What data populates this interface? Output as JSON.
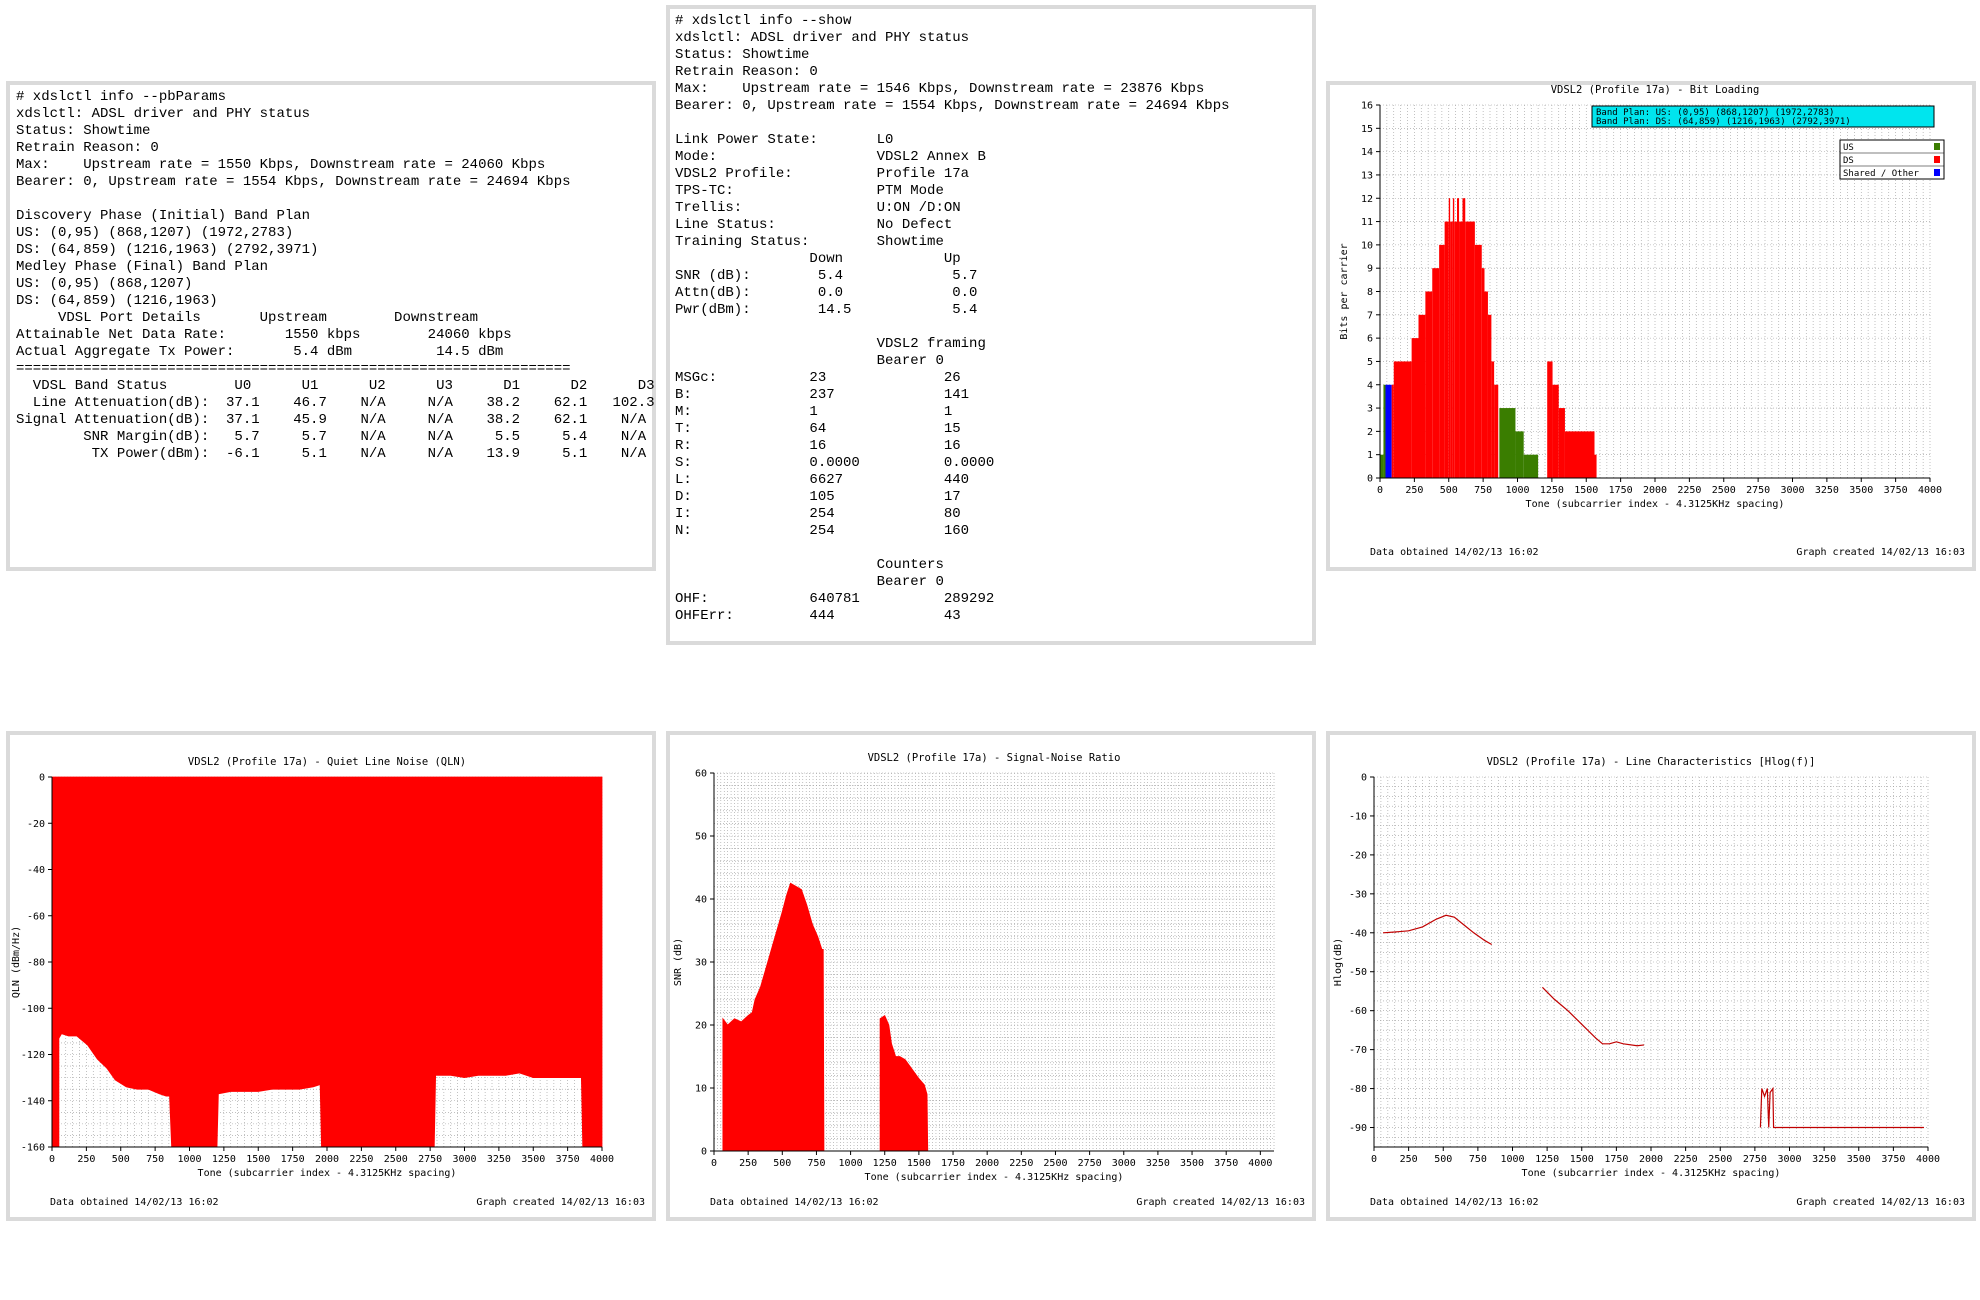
{
  "pbparams": {
    "lines": [
      "# xdslctl info --pbParams",
      "xdslctl: ADSL driver and PHY status",
      "Status: Showtime",
      "Retrain Reason: 0",
      "Max:    Upstream rate = 1550 Kbps, Downstream rate = 24060 Kbps",
      "Bearer: 0, Upstream rate = 1554 Kbps, Downstream rate = 24694 Kbps",
      "",
      "Discovery Phase (Initial) Band Plan",
      "US: (0,95) (868,1207) (1972,2783)",
      "DS: (64,859) (1216,1963) (2792,3971)",
      "Medley Phase (Final) Band Plan",
      "US: (0,95) (868,1207)",
      "DS: (64,859) (1216,1963)",
      "     VDSL Port Details       Upstream        Downstream",
      "Attainable Net Data Rate:       1550 kbps        24060 kbps",
      "Actual Aggregate Tx Power:       5.4 dBm          14.5 dBm",
      "==================================================================",
      "  VDSL Band Status        U0      U1      U2      U3      D1      D2      D3",
      "  Line Attenuation(dB):  37.1    46.7    N/A     N/A    38.2    62.1   102.3",
      "Signal Attenuation(dB):  37.1    45.9    N/A     N/A    38.2    62.1    N/A",
      "        SNR Margin(dB):   5.7     5.7    N/A     N/A     5.5     5.4    N/A",
      "         TX Power(dBm):  -6.1     5.1    N/A     N/A    13.9     5.1    N/A"
    ]
  },
  "show": {
    "lines": [
      "# xdslctl info --show",
      "xdslctl: ADSL driver and PHY status",
      "Status: Showtime",
      "Retrain Reason: 0",
      "Max:    Upstream rate = 1546 Kbps, Downstream rate = 23876 Kbps",
      "Bearer: 0, Upstream rate = 1554 Kbps, Downstream rate = 24694 Kbps",
      "",
      "Link Power State:       L0",
      "Mode:                   VDSL2 Annex B",
      "VDSL2 Profile:          Profile 17a",
      "TPS-TC:                 PTM Mode",
      "Trellis:                U:ON /D:ON",
      "Line Status:            No Defect",
      "Training Status:        Showtime",
      "                Down            Up",
      "SNR (dB):        5.4             5.7",
      "Attn(dB):        0.0             0.0",
      "Pwr(dBm):        14.5            5.4",
      "",
      "                        VDSL2 framing",
      "                        Bearer 0",
      "MSGc:           23              26",
      "B:              237             141",
      "M:              1               1",
      "T:              64              15",
      "R:              16              16",
      "S:              0.0000          0.0000",
      "L:              6627            440",
      "D:              105             17",
      "I:              254             80",
      "N:              254             160",
      "",
      "                        Counters",
      "                        Bearer 0",
      "OHF:            640781          289292",
      "OHFErr:         444             43"
    ]
  },
  "chart_data": [
    {
      "id": "bits",
      "type": "bar",
      "title": "VDSL2 (Profile 17a) - Bit Loading",
      "xlabel": "Tone (subcarrier index - 4.3125KHz spacing)",
      "ylabel": "Bits per carrier",
      "xlim": [
        0,
        4000
      ],
      "ylim": [
        0,
        16
      ],
      "xticks": [
        0,
        250,
        500,
        750,
        1000,
        1250,
        1500,
        1750,
        2000,
        2250,
        2500,
        2750,
        3000,
        3250,
        3500,
        3750,
        4000
      ],
      "yticks": [
        0,
        1,
        2,
        3,
        4,
        5,
        6,
        7,
        8,
        9,
        10,
        11,
        12,
        13,
        14,
        15,
        16
      ],
      "grid": true,
      "band_plan": [
        "Band Plan: US: (0,95) (868,1207) (1972,2783)",
        "Band Plan: DS: (64,859) (1216,1963) (2792,3971)"
      ],
      "legend": [
        {
          "name": "US",
          "color": "#3a7d00"
        },
        {
          "name": "DS",
          "color": "#ff0000"
        },
        {
          "name": "Shared / Other",
          "color": "#0000ff"
        }
      ],
      "legend_position": "top-right",
      "series": [
        {
          "name": "US",
          "color": "#3a7d00",
          "steps": [
            [
              0,
              25,
              1
            ],
            [
              25,
              40,
              4
            ],
            [
              868,
              985,
              3
            ],
            [
              985,
              1045,
              2
            ],
            [
              1045,
              1150,
              1
            ]
          ]
        },
        {
          "name": "Shared / Other",
          "color": "#0000ff",
          "steps": [
            [
              40,
              85,
              4
            ]
          ]
        },
        {
          "name": "DS",
          "color": "#ff0000",
          "steps": [
            [
              85,
              100,
              4
            ],
            [
              100,
              230,
              5
            ],
            [
              230,
              280,
              6
            ],
            [
              280,
              330,
              7
            ],
            [
              330,
              380,
              8
            ],
            [
              380,
              430,
              9
            ],
            [
              430,
              470,
              10
            ],
            [
              470,
              500,
              11
            ],
            [
              500,
              510,
              12
            ],
            [
              510,
              530,
              11
            ],
            [
              530,
              540,
              12
            ],
            [
              540,
              560,
              11
            ],
            [
              560,
              575,
              12
            ],
            [
              575,
              600,
              11
            ],
            [
              600,
              620,
              12
            ],
            [
              620,
              690,
              11
            ],
            [
              690,
              740,
              10
            ],
            [
              740,
              760,
              9
            ],
            [
              760,
              785,
              8
            ],
            [
              785,
              810,
              7
            ],
            [
              810,
              830,
              5
            ],
            [
              830,
              860,
              4
            ],
            [
              1216,
              1255,
              5
            ],
            [
              1255,
              1300,
              4
            ],
            [
              1300,
              1345,
              3
            ],
            [
              1345,
              1400,
              2
            ],
            [
              1400,
              1560,
              2
            ],
            [
              1560,
              1575,
              1
            ]
          ]
        }
      ],
      "footer_left": "Data obtained 14/02/13 16:02",
      "footer_right": "Graph created 14/02/13 16:03"
    },
    {
      "id": "qln",
      "type": "area",
      "title": "VDSL2 (Profile 17a) - Quiet Line Noise (QLN)",
      "xlabel": "Tone (subcarrier index - 4.3125KHz spacing)",
      "ylabel": "QLN (dBm/Hz)",
      "xlim": [
        0,
        4000
      ],
      "ylim": [
        -160,
        0
      ],
      "xticks": [
        0,
        250,
        500,
        750,
        1000,
        1250,
        1500,
        1750,
        2000,
        2250,
        2500,
        2750,
        3000,
        3250,
        3500,
        3750,
        4000
      ],
      "yticks": [
        0,
        -20,
        -40,
        -60,
        -80,
        -100,
        -120,
        -140,
        -160
      ],
      "grid": true,
      "series": [
        {
          "name": "QLN",
          "color": "#ff0000",
          "points": [
            [
              0,
              -160
            ],
            [
              50,
              -160
            ],
            [
              50,
              -113
            ],
            [
              70,
              -111
            ],
            [
              120,
              -112
            ],
            [
              180,
              -112
            ],
            [
              260,
              -116
            ],
            [
              330,
              -122
            ],
            [
              400,
              -126
            ],
            [
              460,
              -131
            ],
            [
              540,
              -134
            ],
            [
              620,
              -135
            ],
            [
              700,
              -135
            ],
            [
              780,
              -137
            ],
            [
              830,
              -138
            ],
            [
              855,
              -138
            ],
            [
              870,
              -160
            ],
            [
              1200,
              -160
            ],
            [
              1210,
              -137
            ],
            [
              1300,
              -136
            ],
            [
              1400,
              -136
            ],
            [
              1500,
              -136
            ],
            [
              1600,
              -135
            ],
            [
              1700,
              -135
            ],
            [
              1800,
              -135
            ],
            [
              1900,
              -134
            ],
            [
              1950,
              -133
            ],
            [
              1960,
              -160
            ],
            [
              2780,
              -160
            ],
            [
              2790,
              -129
            ],
            [
              2900,
              -129
            ],
            [
              3000,
              -130
            ],
            [
              3100,
              -129
            ],
            [
              3200,
              -129
            ],
            [
              3300,
              -129
            ],
            [
              3400,
              -128
            ],
            [
              3500,
              -130
            ],
            [
              3600,
              -130
            ],
            [
              3700,
              -130
            ],
            [
              3800,
              -130
            ],
            [
              3850,
              -130
            ],
            [
              3860,
              -160
            ],
            [
              4000,
              -160
            ]
          ]
        }
      ],
      "footer_left": "Data obtained 14/02/13 16:02",
      "footer_right": "Graph created 14/02/13 16:03"
    },
    {
      "id": "snr",
      "type": "area",
      "title": "VDSL2 (Profile 17a) - Signal-Noise Ratio",
      "xlabel": "Tone (subcarrier index - 4.3125KHz spacing)",
      "ylabel": "SNR (dB)",
      "xlim": [
        0,
        4100
      ],
      "ylim": [
        0,
        60
      ],
      "xticks": [
        0,
        250,
        500,
        750,
        1000,
        1250,
        1500,
        1750,
        2000,
        2250,
        2500,
        2750,
        3000,
        3250,
        3500,
        3750,
        4000
      ],
      "yticks": [
        0,
        10,
        20,
        30,
        40,
        50,
        60
      ],
      "grid": true,
      "series": [
        {
          "name": "SNR",
          "color": "#ff0000",
          "points": [
            [
              65,
              0
            ],
            [
              65,
              21
            ],
            [
              100,
              20
            ],
            [
              150,
              21
            ],
            [
              200,
              20.5
            ],
            [
              250,
              21.5
            ],
            [
              280,
              22
            ],
            [
              300,
              24
            ],
            [
              340,
              26
            ],
            [
              380,
              29
            ],
            [
              420,
              32
            ],
            [
              460,
              35
            ],
            [
              500,
              38
            ],
            [
              530,
              40.5
            ],
            [
              560,
              42.5
            ],
            [
              600,
              42
            ],
            [
              640,
              41.5
            ],
            [
              680,
              39
            ],
            [
              720,
              36
            ],
            [
              760,
              34
            ],
            [
              790,
              32
            ],
            [
              800,
              32
            ],
            [
              805,
              0
            ],
            [
              1216,
              0
            ],
            [
              1216,
              21
            ],
            [
              1250,
              21.5
            ],
            [
              1280,
              20
            ],
            [
              1300,
              17
            ],
            [
              1330,
              15
            ],
            [
              1360,
              15
            ],
            [
              1400,
              14.5
            ],
            [
              1450,
              13
            ],
            [
              1500,
              11.5
            ],
            [
              1540,
              10.5
            ],
            [
              1560,
              9
            ],
            [
              1565,
              0
            ]
          ]
        }
      ],
      "footer_left": "Data obtained 14/02/13 16:02",
      "footer_right": "Graph created 14/02/13 16:03"
    },
    {
      "id": "hlog",
      "type": "line",
      "title": "VDSL2 (Profile 17a) - Line Characteristics [Hlog(f)]",
      "xlabel": "Tone (subcarrier index - 4.3125KHz spacing)",
      "ylabel": "Hlog(dB)",
      "xlim": [
        0,
        4000
      ],
      "ylim": [
        -95,
        0
      ],
      "xticks": [
        0,
        250,
        500,
        750,
        1000,
        1250,
        1500,
        1750,
        2000,
        2250,
        2500,
        2750,
        3000,
        3250,
        3500,
        3750,
        4000
      ],
      "yticks": [
        0,
        -10,
        -20,
        -30,
        -40,
        -50,
        -60,
        -70,
        -80,
        -90
      ],
      "grid": true,
      "series": [
        {
          "name": "Hlog1",
          "color": "#c00000",
          "points": [
            [
              65,
              -40
            ],
            [
              150,
              -39.8
            ],
            [
              250,
              -39.5
            ],
            [
              350,
              -38.5
            ],
            [
              450,
              -36.5
            ],
            [
              520,
              -35.5
            ],
            [
              580,
              -36
            ],
            [
              650,
              -38
            ],
            [
              720,
              -40
            ],
            [
              800,
              -42
            ],
            [
              850,
              -43
            ]
          ]
        },
        {
          "name": "Hlog2",
          "color": "#c00000",
          "points": [
            [
              1216,
              -54
            ],
            [
              1300,
              -57
            ],
            [
              1400,
              -60
            ],
            [
              1500,
              -63.5
            ],
            [
              1600,
              -67
            ],
            [
              1650,
              -68.5
            ],
            [
              1700,
              -68.5
            ],
            [
              1750,
              -68
            ],
            [
              1800,
              -68.5
            ],
            [
              1900,
              -69
            ],
            [
              1950,
              -68.8
            ]
          ]
        },
        {
          "name": "Hlog3",
          "color": "#c00000",
          "points": [
            [
              2790,
              -90
            ],
            [
              2800,
              -80
            ],
            [
              2820,
              -82
            ],
            [
              2840,
              -80
            ],
            [
              2850,
              -90
            ],
            [
              2860,
              -81
            ],
            [
              2880,
              -80
            ],
            [
              2885,
              -90
            ],
            [
              3971,
              -90
            ]
          ]
        }
      ],
      "footer_left": "Data obtained 14/02/13 16:02",
      "footer_right": "Graph created 14/02/13 16:03"
    }
  ]
}
